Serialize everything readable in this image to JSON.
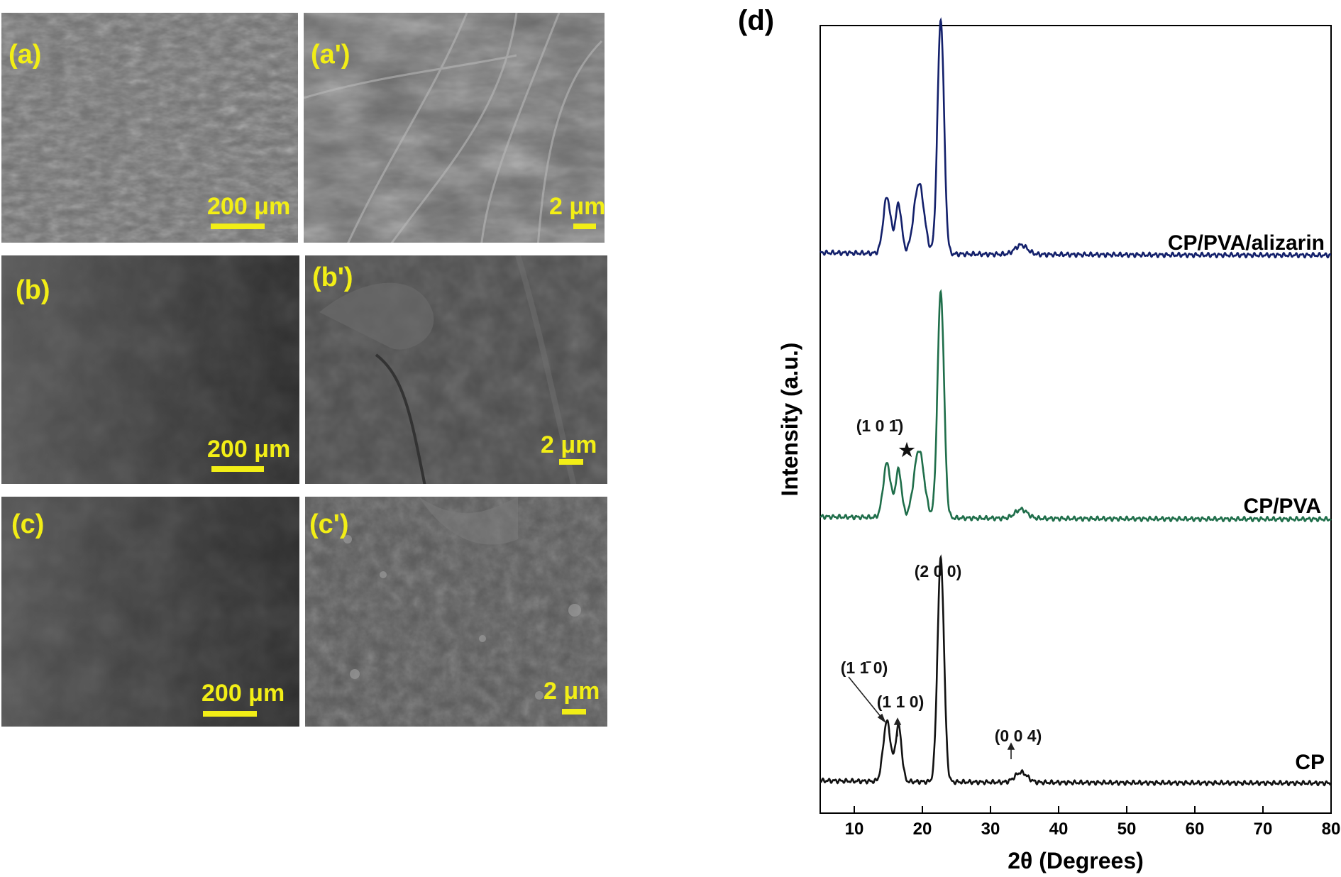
{
  "panels": [
    {
      "label": "(a)",
      "scale": "200 μm"
    },
    {
      "label": "(a')",
      "scale": "2 μm"
    },
    {
      "label": "(b)",
      "scale": "200 μm"
    },
    {
      "label": "(b')",
      "scale": "2 μm"
    },
    {
      "label": "(c)",
      "scale": "200 μm"
    },
    {
      "label": "(c')",
      "scale": "2 μm"
    }
  ],
  "chart_data": {
    "type": "line",
    "panel_label": "(d)",
    "xlabel": "2θ (Degrees)",
    "ylabel": "Intensity (a.u.)",
    "xlim": [
      5,
      80
    ],
    "xticks": [
      10,
      20,
      30,
      40,
      50,
      60,
      70,
      80
    ],
    "yticks_shown": false,
    "series": [
      {
        "name": "CP",
        "color": "#111111",
        "offset": 0,
        "peaks": [
          [
            14.8,
            0.27
          ],
          [
            16.5,
            0.25
          ],
          [
            22.7,
            1.0
          ],
          [
            34.5,
            0.045
          ]
        ]
      },
      {
        "name": "CP/PVA",
        "color": "#1f6e4a",
        "offset": 1,
        "peaks": [
          [
            14.8,
            0.24
          ],
          [
            16.5,
            0.21
          ],
          [
            19.5,
            0.3
          ],
          [
            22.7,
            1.0
          ],
          [
            34.5,
            0.04
          ]
        ]
      },
      {
        "name": "CP/PVA/alizarin",
        "color": "#13206b",
        "offset": 2,
        "peaks": [
          [
            14.8,
            0.24
          ],
          [
            16.5,
            0.21
          ],
          [
            19.5,
            0.3
          ],
          [
            22.7,
            1.0
          ],
          [
            34.5,
            0.04
          ]
        ]
      }
    ],
    "annotations": [
      "(2 0 0)",
      "(1 1̄ 0)",
      "(1 1 0)",
      "(0 0 4)",
      "(1 0 1̄)",
      "★"
    ]
  }
}
